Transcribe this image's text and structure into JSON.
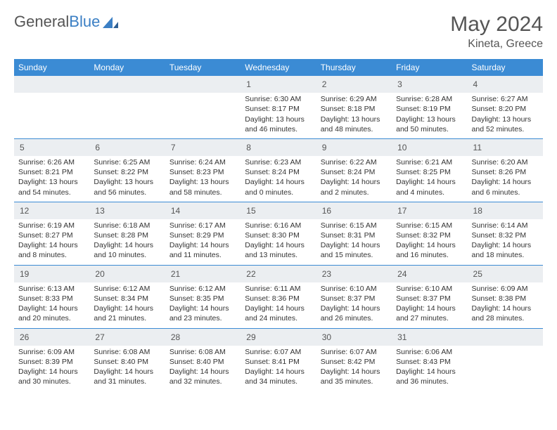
{
  "brand": {
    "part1": "General",
    "part2": "Blue"
  },
  "header": {
    "month_title": "May 2024",
    "location": "Kineta, Greece"
  },
  "day_headers": [
    "Sunday",
    "Monday",
    "Tuesday",
    "Wednesday",
    "Thursday",
    "Friday",
    "Saturday"
  ],
  "colors": {
    "header_bg": "#3b8bd4",
    "header_text": "#ffffff",
    "daynum_bg": "#ebeef1",
    "border": "#3b8bd4",
    "text": "#333333",
    "title": "#555555"
  },
  "weeks": [
    [
      null,
      null,
      null,
      {
        "n": "1",
        "sunrise": "Sunrise: 6:30 AM",
        "sunset": "Sunset: 8:17 PM",
        "daylight": "Daylight: 13 hours and 46 minutes."
      },
      {
        "n": "2",
        "sunrise": "Sunrise: 6:29 AM",
        "sunset": "Sunset: 8:18 PM",
        "daylight": "Daylight: 13 hours and 48 minutes."
      },
      {
        "n": "3",
        "sunrise": "Sunrise: 6:28 AM",
        "sunset": "Sunset: 8:19 PM",
        "daylight": "Daylight: 13 hours and 50 minutes."
      },
      {
        "n": "4",
        "sunrise": "Sunrise: 6:27 AM",
        "sunset": "Sunset: 8:20 PM",
        "daylight": "Daylight: 13 hours and 52 minutes."
      }
    ],
    [
      {
        "n": "5",
        "sunrise": "Sunrise: 6:26 AM",
        "sunset": "Sunset: 8:21 PM",
        "daylight": "Daylight: 13 hours and 54 minutes."
      },
      {
        "n": "6",
        "sunrise": "Sunrise: 6:25 AM",
        "sunset": "Sunset: 8:22 PM",
        "daylight": "Daylight: 13 hours and 56 minutes."
      },
      {
        "n": "7",
        "sunrise": "Sunrise: 6:24 AM",
        "sunset": "Sunset: 8:23 PM",
        "daylight": "Daylight: 13 hours and 58 minutes."
      },
      {
        "n": "8",
        "sunrise": "Sunrise: 6:23 AM",
        "sunset": "Sunset: 8:24 PM",
        "daylight": "Daylight: 14 hours and 0 minutes."
      },
      {
        "n": "9",
        "sunrise": "Sunrise: 6:22 AM",
        "sunset": "Sunset: 8:24 PM",
        "daylight": "Daylight: 14 hours and 2 minutes."
      },
      {
        "n": "10",
        "sunrise": "Sunrise: 6:21 AM",
        "sunset": "Sunset: 8:25 PM",
        "daylight": "Daylight: 14 hours and 4 minutes."
      },
      {
        "n": "11",
        "sunrise": "Sunrise: 6:20 AM",
        "sunset": "Sunset: 8:26 PM",
        "daylight": "Daylight: 14 hours and 6 minutes."
      }
    ],
    [
      {
        "n": "12",
        "sunrise": "Sunrise: 6:19 AM",
        "sunset": "Sunset: 8:27 PM",
        "daylight": "Daylight: 14 hours and 8 minutes."
      },
      {
        "n": "13",
        "sunrise": "Sunrise: 6:18 AM",
        "sunset": "Sunset: 8:28 PM",
        "daylight": "Daylight: 14 hours and 10 minutes."
      },
      {
        "n": "14",
        "sunrise": "Sunrise: 6:17 AM",
        "sunset": "Sunset: 8:29 PM",
        "daylight": "Daylight: 14 hours and 11 minutes."
      },
      {
        "n": "15",
        "sunrise": "Sunrise: 6:16 AM",
        "sunset": "Sunset: 8:30 PM",
        "daylight": "Daylight: 14 hours and 13 minutes."
      },
      {
        "n": "16",
        "sunrise": "Sunrise: 6:15 AM",
        "sunset": "Sunset: 8:31 PM",
        "daylight": "Daylight: 14 hours and 15 minutes."
      },
      {
        "n": "17",
        "sunrise": "Sunrise: 6:15 AM",
        "sunset": "Sunset: 8:32 PM",
        "daylight": "Daylight: 14 hours and 16 minutes."
      },
      {
        "n": "18",
        "sunrise": "Sunrise: 6:14 AM",
        "sunset": "Sunset: 8:32 PM",
        "daylight": "Daylight: 14 hours and 18 minutes."
      }
    ],
    [
      {
        "n": "19",
        "sunrise": "Sunrise: 6:13 AM",
        "sunset": "Sunset: 8:33 PM",
        "daylight": "Daylight: 14 hours and 20 minutes."
      },
      {
        "n": "20",
        "sunrise": "Sunrise: 6:12 AM",
        "sunset": "Sunset: 8:34 PM",
        "daylight": "Daylight: 14 hours and 21 minutes."
      },
      {
        "n": "21",
        "sunrise": "Sunrise: 6:12 AM",
        "sunset": "Sunset: 8:35 PM",
        "daylight": "Daylight: 14 hours and 23 minutes."
      },
      {
        "n": "22",
        "sunrise": "Sunrise: 6:11 AM",
        "sunset": "Sunset: 8:36 PM",
        "daylight": "Daylight: 14 hours and 24 minutes."
      },
      {
        "n": "23",
        "sunrise": "Sunrise: 6:10 AM",
        "sunset": "Sunset: 8:37 PM",
        "daylight": "Daylight: 14 hours and 26 minutes."
      },
      {
        "n": "24",
        "sunrise": "Sunrise: 6:10 AM",
        "sunset": "Sunset: 8:37 PM",
        "daylight": "Daylight: 14 hours and 27 minutes."
      },
      {
        "n": "25",
        "sunrise": "Sunrise: 6:09 AM",
        "sunset": "Sunset: 8:38 PM",
        "daylight": "Daylight: 14 hours and 28 minutes."
      }
    ],
    [
      {
        "n": "26",
        "sunrise": "Sunrise: 6:09 AM",
        "sunset": "Sunset: 8:39 PM",
        "daylight": "Daylight: 14 hours and 30 minutes."
      },
      {
        "n": "27",
        "sunrise": "Sunrise: 6:08 AM",
        "sunset": "Sunset: 8:40 PM",
        "daylight": "Daylight: 14 hours and 31 minutes."
      },
      {
        "n": "28",
        "sunrise": "Sunrise: 6:08 AM",
        "sunset": "Sunset: 8:40 PM",
        "daylight": "Daylight: 14 hours and 32 minutes."
      },
      {
        "n": "29",
        "sunrise": "Sunrise: 6:07 AM",
        "sunset": "Sunset: 8:41 PM",
        "daylight": "Daylight: 14 hours and 34 minutes."
      },
      {
        "n": "30",
        "sunrise": "Sunrise: 6:07 AM",
        "sunset": "Sunset: 8:42 PM",
        "daylight": "Daylight: 14 hours and 35 minutes."
      },
      {
        "n": "31",
        "sunrise": "Sunrise: 6:06 AM",
        "sunset": "Sunset: 8:43 PM",
        "daylight": "Daylight: 14 hours and 36 minutes."
      },
      null
    ]
  ]
}
